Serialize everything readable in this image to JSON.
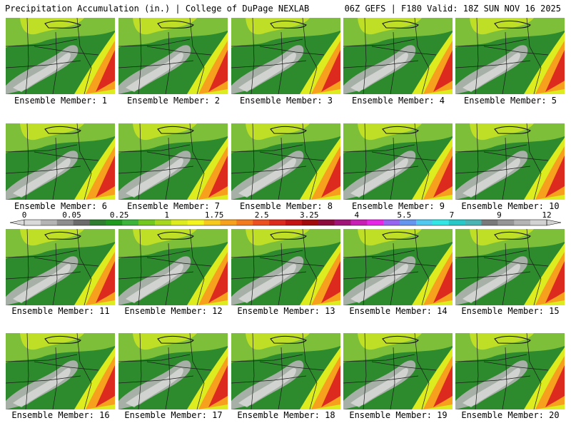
{
  "header": {
    "left_title": "Precipitation Accumulation (in.) | College of DuPage NEXLAB",
    "right_title": "06Z GEFS | F180 Valid: 18Z SUN NOV 16 2025"
  },
  "members": [
    "Ensemble Member: 1",
    "Ensemble Member: 2",
    "Ensemble Member: 3",
    "Ensemble Member: 4",
    "Ensemble Member: 5",
    "Ensemble Member: 6",
    "Ensemble Member: 7",
    "Ensemble Member: 8",
    "Ensemble Member: 9",
    "Ensemble Member: 10",
    "Ensemble Member: 11",
    "Ensemble Member: 12",
    "Ensemble Member: 13",
    "Ensemble Member: 14",
    "Ensemble Member: 15",
    "Ensemble Member: 16",
    "Ensemble Member: 17",
    "Ensemble Member: 18",
    "Ensemble Member: 19",
    "Ensemble Member: 20"
  ],
  "colorbar": {
    "labels": [
      "0",
      "0.05",
      "0.25",
      "1",
      "1.75",
      "2.5",
      "3.25",
      "4",
      "5.5",
      "7",
      "9",
      "12"
    ],
    "colors": [
      "#d9d9d9",
      "#b4b4b4",
      "#8e8e8e",
      "#6b6b6b",
      "#2f7d2f",
      "#1f9a1f",
      "#3cb43c",
      "#73c81e",
      "#a8d81e",
      "#dcec1e",
      "#f4f41e",
      "#f7c81e",
      "#f7a01e",
      "#f47a1e",
      "#ec501e",
      "#dc2a1e",
      "#c41414",
      "#a00a0a",
      "#8c0a3c",
      "#a01478",
      "#c81eb4",
      "#e628e6",
      "#9664f0",
      "#6496f0",
      "#50c8f0",
      "#32e6e6",
      "#28c8c8",
      "#4ab4b4",
      "#7a7a7a",
      "#969696",
      "#b4b4b4",
      "#d2d2d2"
    ]
  }
}
